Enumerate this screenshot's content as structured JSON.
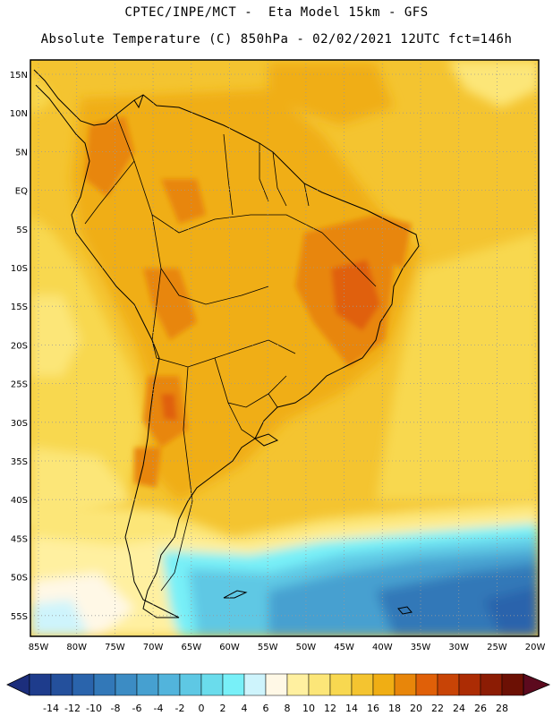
{
  "header": {
    "line1": "CPTEC/INPE/MCT -  Eta Model 15km - GFS",
    "line2": "Absolute Temperature (C) 850hPa - 02/02/2021 12UTC fct=146h"
  },
  "map": {
    "lat_labels": [
      "15N",
      "10N",
      "5N",
      "EQ",
      "5S",
      "10S",
      "15S",
      "20S",
      "25S",
      "30S",
      "35S",
      "40S",
      "45S",
      "50S",
      "55S"
    ],
    "lon_labels": [
      "85W",
      "80W",
      "75W",
      "70W",
      "65W",
      "60W",
      "55W",
      "50W",
      "45W",
      "40W",
      "35W",
      "30W",
      "25W",
      "20W"
    ],
    "grid": "dotted"
  },
  "colorbar": {
    "colors": [
      "#1e3c8c",
      "#24509c",
      "#2a64ac",
      "#3278b8",
      "#3c8cc4",
      "#46a0d0",
      "#52b4dc",
      "#5ec8e4",
      "#6adcec",
      "#78f0f8",
      "#cef4fc",
      "#fff8e6",
      "#fff0a0",
      "#fce678",
      "#f8d850",
      "#f4c430",
      "#f0ae14",
      "#e8860a",
      "#e06008",
      "#c84406",
      "#ac2c04",
      "#8c1c04",
      "#6c1004"
    ],
    "min_color": "#1c2e7c",
    "max_color": "#5c0a1e",
    "labels": [
      "-14",
      "-12",
      "-10",
      "-8",
      "-6",
      "-4",
      "-2",
      "0",
      "2",
      "4",
      "6",
      "8",
      "10",
      "12",
      "14",
      "16",
      "18",
      "20",
      "22",
      "24",
      "26",
      "28"
    ]
  }
}
